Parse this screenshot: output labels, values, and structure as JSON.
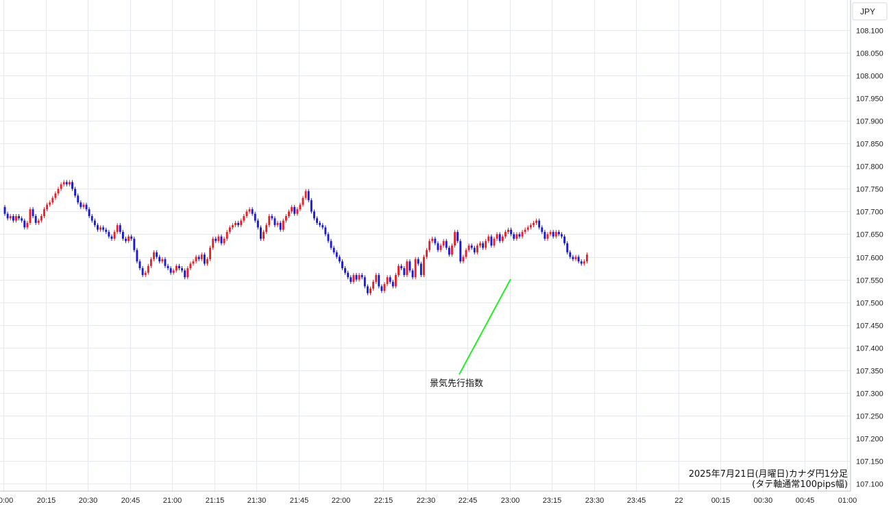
{
  "currency": "JPY",
  "caption": {
    "line1": "2025年7月21日(月曜日)カナダ円1分足",
    "line2": "(タテ軸通常100pips幅)"
  },
  "annotation": {
    "label": "景気先行指数",
    "time": "23:00",
    "price": 107.555,
    "color": "#22ee22"
  },
  "colors": {
    "up": "#e8202a",
    "down": "#1a1ad6",
    "grid": "#e3e9ef"
  },
  "chart_data": {
    "type": "candlestick",
    "title": "",
    "xlabel": "",
    "ylabel": "",
    "ylim": [
      107.075,
      108.125
    ],
    "xlim": [
      "20:00",
      "01:00"
    ],
    "y_ticks": [
      "108.100",
      "108.050",
      "108.000",
      "107.950",
      "107.900",
      "107.850",
      "107.800",
      "107.750",
      "107.700",
      "107.650",
      "107.600",
      "107.550",
      "107.500",
      "107.450",
      "107.400",
      "107.350",
      "107.300",
      "107.250",
      "107.200",
      "107.150",
      "107.100"
    ],
    "x_ticks": [
      "20:00",
      "20:15",
      "20:30",
      "20:45",
      "21:00",
      "21:15",
      "21:30",
      "21:45",
      "22:00",
      "22:15",
      "22:30",
      "22:45",
      "23:00",
      "23:15",
      "23:30",
      "23:45",
      "22",
      "00:15",
      "00:30",
      "00:45",
      "01:00"
    ],
    "series": [
      {
        "values": [
          [
            107.71,
            107.695
          ],
          [
            107.695,
            107.685
          ],
          [
            107.685,
            107.69
          ],
          [
            107.69,
            107.68
          ],
          [
            107.68,
            107.69
          ],
          [
            107.69,
            107.685
          ],
          [
            107.685,
            107.68
          ],
          [
            107.68,
            107.665
          ],
          [
            107.665,
            107.675
          ],
          [
            107.675,
            107.705
          ],
          [
            107.705,
            107.69
          ],
          [
            107.69,
            107.675
          ],
          [
            107.675,
            107.68
          ],
          [
            107.68,
            107.69
          ],
          [
            107.69,
            107.705
          ],
          [
            107.705,
            107.715
          ],
          [
            107.715,
            107.72
          ],
          [
            107.72,
            107.73
          ],
          [
            107.73,
            107.74
          ],
          [
            107.74,
            107.75
          ],
          [
            107.75,
            107.76
          ],
          [
            107.76,
            107.765
          ],
          [
            107.765,
            107.76
          ],
          [
            107.76,
            107.765
          ],
          [
            107.765,
            107.75
          ],
          [
            107.75,
            107.735
          ],
          [
            107.735,
            107.72
          ],
          [
            107.72,
            107.71
          ],
          [
            107.71,
            107.715
          ],
          [
            107.715,
            107.705
          ],
          [
            107.705,
            107.69
          ],
          [
            107.69,
            107.68
          ],
          [
            107.68,
            107.67
          ],
          [
            107.67,
            107.66
          ],
          [
            107.66,
            107.665
          ],
          [
            107.665,
            107.66
          ],
          [
            107.66,
            107.655
          ],
          [
            107.655,
            107.645
          ],
          [
            107.645,
            107.64
          ],
          [
            107.64,
            107.655
          ],
          [
            107.655,
            107.67
          ],
          [
            107.67,
            107.655
          ],
          [
            107.655,
            107.64
          ],
          [
            107.64,
            107.635
          ],
          [
            107.635,
            107.645
          ],
          [
            107.645,
            107.64
          ],
          [
            107.64,
            107.615
          ],
          [
            107.615,
            107.59
          ],
          [
            107.59,
            107.575
          ],
          [
            107.575,
            107.56
          ],
          [
            107.56,
            107.565
          ],
          [
            107.565,
            107.58
          ],
          [
            107.58,
            107.595
          ],
          [
            107.595,
            107.61
          ],
          [
            107.61,
            107.6
          ],
          [
            107.6,
            107.59
          ],
          [
            107.59,
            107.595
          ],
          [
            107.595,
            107.58
          ],
          [
            107.58,
            107.575
          ],
          [
            107.575,
            107.565
          ],
          [
            107.565,
            107.57
          ],
          [
            107.57,
            107.58
          ],
          [
            107.58,
            107.575
          ],
          [
            107.575,
            107.57
          ],
          [
            107.57,
            107.555
          ],
          [
            107.555,
            107.575
          ],
          [
            107.575,
            107.585
          ],
          [
            107.585,
            107.59
          ],
          [
            107.59,
            107.6
          ],
          [
            107.6,
            107.595
          ],
          [
            107.595,
            107.605
          ],
          [
            107.605,
            107.585
          ],
          [
            107.585,
            107.595
          ],
          [
            107.595,
            107.62
          ],
          [
            107.62,
            107.64
          ],
          [
            107.64,
            107.635
          ],
          [
            107.635,
            107.645
          ],
          [
            107.645,
            107.63
          ],
          [
            107.63,
            107.64
          ],
          [
            107.64,
            107.655
          ],
          [
            107.655,
            107.665
          ],
          [
            107.665,
            107.67
          ],
          [
            107.67,
            107.675
          ],
          [
            107.675,
            107.67
          ],
          [
            107.67,
            107.68
          ],
          [
            107.68,
            107.69
          ],
          [
            107.69,
            107.7
          ],
          [
            107.7,
            107.705
          ],
          [
            107.705,
            107.695
          ],
          [
            107.695,
            107.68
          ],
          [
            107.68,
            107.665
          ],
          [
            107.665,
            107.64
          ],
          [
            107.64,
            107.655
          ],
          [
            107.655,
            107.67
          ],
          [
            107.67,
            107.69
          ],
          [
            107.69,
            107.685
          ],
          [
            107.685,
            107.67
          ],
          [
            107.67,
            107.675
          ],
          [
            107.675,
            107.66
          ],
          [
            107.66,
            107.68
          ],
          [
            107.68,
            107.69
          ],
          [
            107.69,
            107.7
          ],
          [
            107.7,
            107.71
          ],
          [
            107.71,
            107.695
          ],
          [
            107.695,
            107.705
          ],
          [
            107.705,
            107.715
          ],
          [
            107.715,
            107.73
          ],
          [
            107.73,
            107.745
          ],
          [
            107.745,
            107.725
          ],
          [
            107.725,
            107.7
          ],
          [
            107.7,
            107.685
          ],
          [
            107.685,
            107.675
          ],
          [
            107.675,
            107.67
          ],
          [
            107.67,
            107.665
          ],
          [
            107.665,
            107.65
          ],
          [
            107.65,
            107.635
          ],
          [
            107.635,
            107.62
          ],
          [
            107.62,
            107.61
          ],
          [
            107.61,
            107.6
          ],
          [
            107.6,
            107.59
          ],
          [
            107.59,
            107.575
          ],
          [
            107.575,
            107.565
          ],
          [
            107.565,
            107.555
          ],
          [
            107.555,
            107.545
          ],
          [
            107.545,
            107.56
          ],
          [
            107.56,
            107.55
          ],
          [
            107.55,
            107.56
          ],
          [
            107.56,
            107.555
          ],
          [
            107.555,
            107.535
          ],
          [
            107.535,
            107.52
          ],
          [
            107.52,
            107.53
          ],
          [
            107.53,
            107.545
          ],
          [
            107.545,
            107.56
          ],
          [
            107.56,
            107.535
          ],
          [
            107.535,
            107.525
          ],
          [
            107.525,
            107.54
          ],
          [
            107.54,
            107.555
          ],
          [
            107.555,
            107.545
          ],
          [
            107.545,
            107.535
          ],
          [
            107.535,
            107.56
          ],
          [
            107.56,
            107.58
          ],
          [
            107.58,
            107.575
          ],
          [
            107.575,
            107.56
          ],
          [
            107.56,
            107.59
          ],
          [
            107.59,
            107.57
          ],
          [
            107.57,
            107.555
          ],
          [
            107.555,
            107.595
          ],
          [
            107.595,
            107.585
          ],
          [
            107.585,
            107.56
          ],
          [
            107.56,
            107.6
          ],
          [
            107.6,
            107.615
          ],
          [
            107.615,
            107.635
          ],
          [
            107.635,
            107.64
          ],
          [
            107.64,
            107.63
          ],
          [
            107.63,
            107.615
          ],
          [
            107.615,
            107.625
          ],
          [
            107.625,
            107.635
          ],
          [
            107.635,
            107.62
          ],
          [
            107.62,
            107.605
          ],
          [
            107.605,
            107.625
          ],
          [
            107.625,
            107.655
          ],
          [
            107.655,
            107.635
          ],
          [
            107.635,
            107.59
          ],
          [
            107.59,
            107.6
          ],
          [
            107.6,
            107.615
          ],
          [
            107.615,
            107.625
          ],
          [
            107.625,
            107.62
          ],
          [
            107.62,
            107.61
          ],
          [
            107.61,
            107.625
          ],
          [
            107.625,
            107.63
          ],
          [
            107.63,
            107.62
          ],
          [
            107.62,
            107.635
          ],
          [
            107.635,
            107.645
          ],
          [
            107.645,
            107.625
          ],
          [
            107.625,
            107.64
          ],
          [
            107.64,
            107.65
          ],
          [
            107.65,
            107.635
          ],
          [
            107.635,
            107.645
          ],
          [
            107.645,
            107.655
          ],
          [
            107.655,
            107.66
          ],
          [
            107.66,
            107.65
          ],
          [
            107.65,
            107.64
          ],
          [
            107.64,
            107.65
          ],
          [
            107.65,
            107.645
          ],
          [
            107.645,
            107.655
          ],
          [
            107.655,
            107.66
          ],
          [
            107.66,
            107.665
          ],
          [
            107.665,
            107.67
          ],
          [
            107.67,
            107.675
          ],
          [
            107.675,
            107.68
          ],
          [
            107.68,
            107.665
          ],
          [
            107.665,
            107.655
          ],
          [
            107.655,
            107.64
          ],
          [
            107.64,
            107.65
          ],
          [
            107.65,
            107.655
          ],
          [
            107.655,
            107.645
          ],
          [
            107.645,
            107.655
          ],
          [
            107.655,
            107.65
          ],
          [
            107.65,
            107.645
          ],
          [
            107.645,
            107.63
          ],
          [
            107.63,
            107.61
          ],
          [
            107.61,
            107.6
          ],
          [
            107.6,
            107.595
          ],
          [
            107.595,
            107.6
          ],
          [
            107.6,
            107.59
          ],
          [
            107.59,
            107.585
          ],
          [
            107.585,
            107.59
          ],
          [
            107.59,
            107.605
          ]
        ]
      }
    ]
  }
}
